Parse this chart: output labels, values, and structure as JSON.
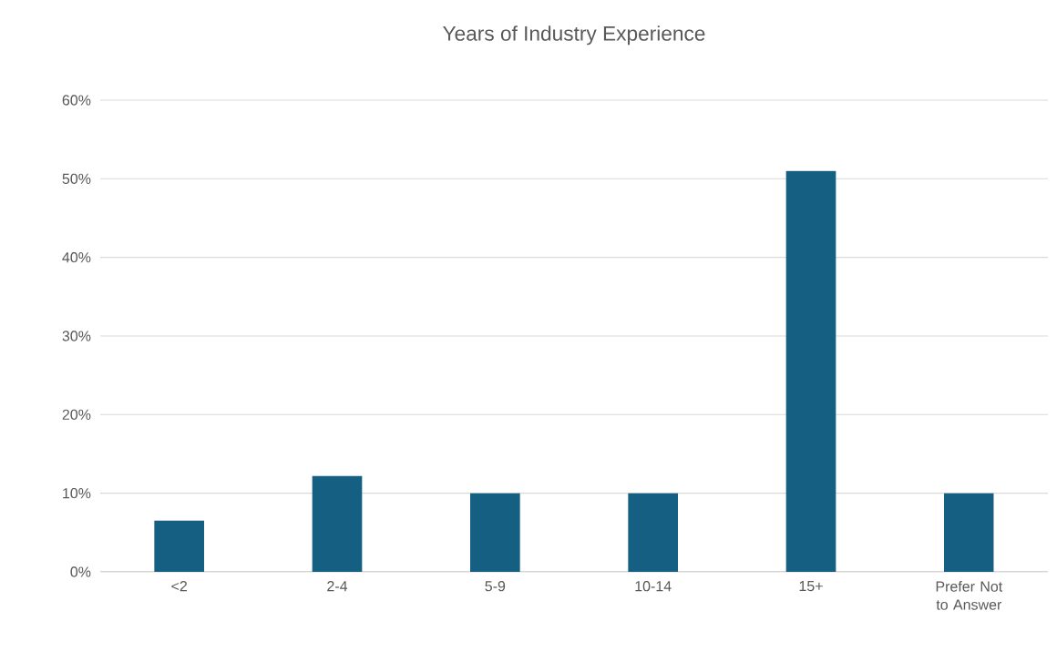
{
  "chart_data": {
    "type": "bar",
    "title": "Years of Industry Experience",
    "categories": [
      "<2",
      "2-4",
      "5-9",
      "10-14",
      "15+",
      "Prefer Not to Answer"
    ],
    "values": [
      6.5,
      12.2,
      10,
      10,
      51,
      10
    ],
    "color": "#156082",
    "ylim": [
      0,
      60
    ],
    "yticks": [
      {
        "value": 0,
        "label": "0%"
      },
      {
        "value": 10,
        "label": "10%"
      },
      {
        "value": 20,
        "label": "20%"
      },
      {
        "value": 30,
        "label": "30%"
      },
      {
        "value": 40,
        "label": "40%"
      },
      {
        "value": 50,
        "label": "50%"
      },
      {
        "value": 60,
        "label": "60%"
      }
    ],
    "grid": "y"
  }
}
